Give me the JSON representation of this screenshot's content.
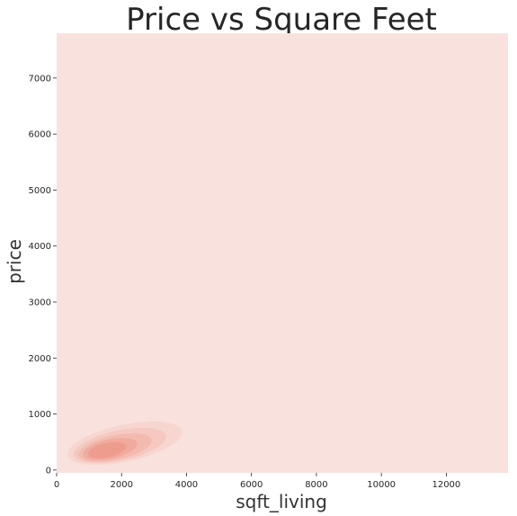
{
  "chart_data": {
    "type": "heatmap",
    "title": "Price vs Square Feet",
    "xlabel": "sqft_living",
    "ylabel": "price",
    "xlim": [
      0,
      13900
    ],
    "ylim": [
      -50,
      7800
    ],
    "x_ticks": [
      0,
      2000,
      4000,
      6000,
      8000,
      10000,
      12000
    ],
    "y_ticks": [
      0,
      1000,
      2000,
      3000,
      4000,
      5000,
      6000,
      7000
    ],
    "grid": false,
    "background_color": "#f9e2dd",
    "density_color": "#ec8775",
    "density_levels": [
      {
        "cx": 2100,
        "cy": 480,
        "rx": 1800,
        "ry": 330,
        "opacity": 0.12
      },
      {
        "cx": 1950,
        "cy": 440,
        "rx": 1450,
        "ry": 270,
        "opacity": 0.16
      },
      {
        "cx": 1800,
        "cy": 400,
        "rx": 1150,
        "ry": 220,
        "opacity": 0.22
      },
      {
        "cx": 1650,
        "cy": 375,
        "rx": 850,
        "ry": 175,
        "opacity": 0.3
      },
      {
        "cx": 1550,
        "cy": 355,
        "rx": 600,
        "ry": 130,
        "opacity": 0.4
      }
    ]
  }
}
